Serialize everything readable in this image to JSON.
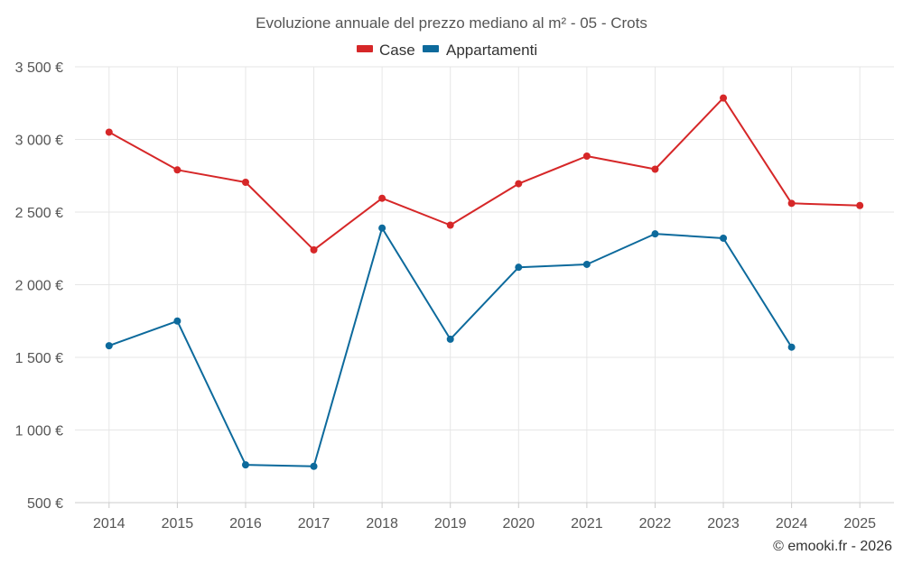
{
  "chart_data": {
    "type": "line",
    "title": "Evoluzione annuale del prezzo mediano al m² - 05 - Crots",
    "categories": [
      "2014",
      "2015",
      "2016",
      "2017",
      "2018",
      "2019",
      "2020",
      "2021",
      "2022",
      "2023",
      "2024",
      "2025"
    ],
    "series": [
      {
        "name": "Case",
        "color": "#d62728",
        "values": [
          3050,
          2790,
          2705,
          2240,
          2595,
          2410,
          2695,
          2885,
          2795,
          3285,
          2560,
          2545
        ]
      },
      {
        "name": "Appartamenti",
        "color": "#0d6a9c",
        "values": [
          1580,
          1750,
          760,
          750,
          2390,
          1625,
          2120,
          2140,
          2350,
          2320,
          1570,
          null
        ]
      }
    ],
    "yticks": [
      "500 €",
      "1 000 €",
      "1 500 €",
      "2 000 €",
      "2 500 €",
      "3 000 €",
      "3 500 €"
    ],
    "ytick_values": [
      500,
      1000,
      1500,
      2000,
      2500,
      3000,
      3500
    ],
    "ylim": [
      500,
      3500
    ],
    "xlabel": "",
    "ylabel": "",
    "grid": true,
    "legend_position": "top-center"
  },
  "credit": "© emooki.fr - 2026"
}
